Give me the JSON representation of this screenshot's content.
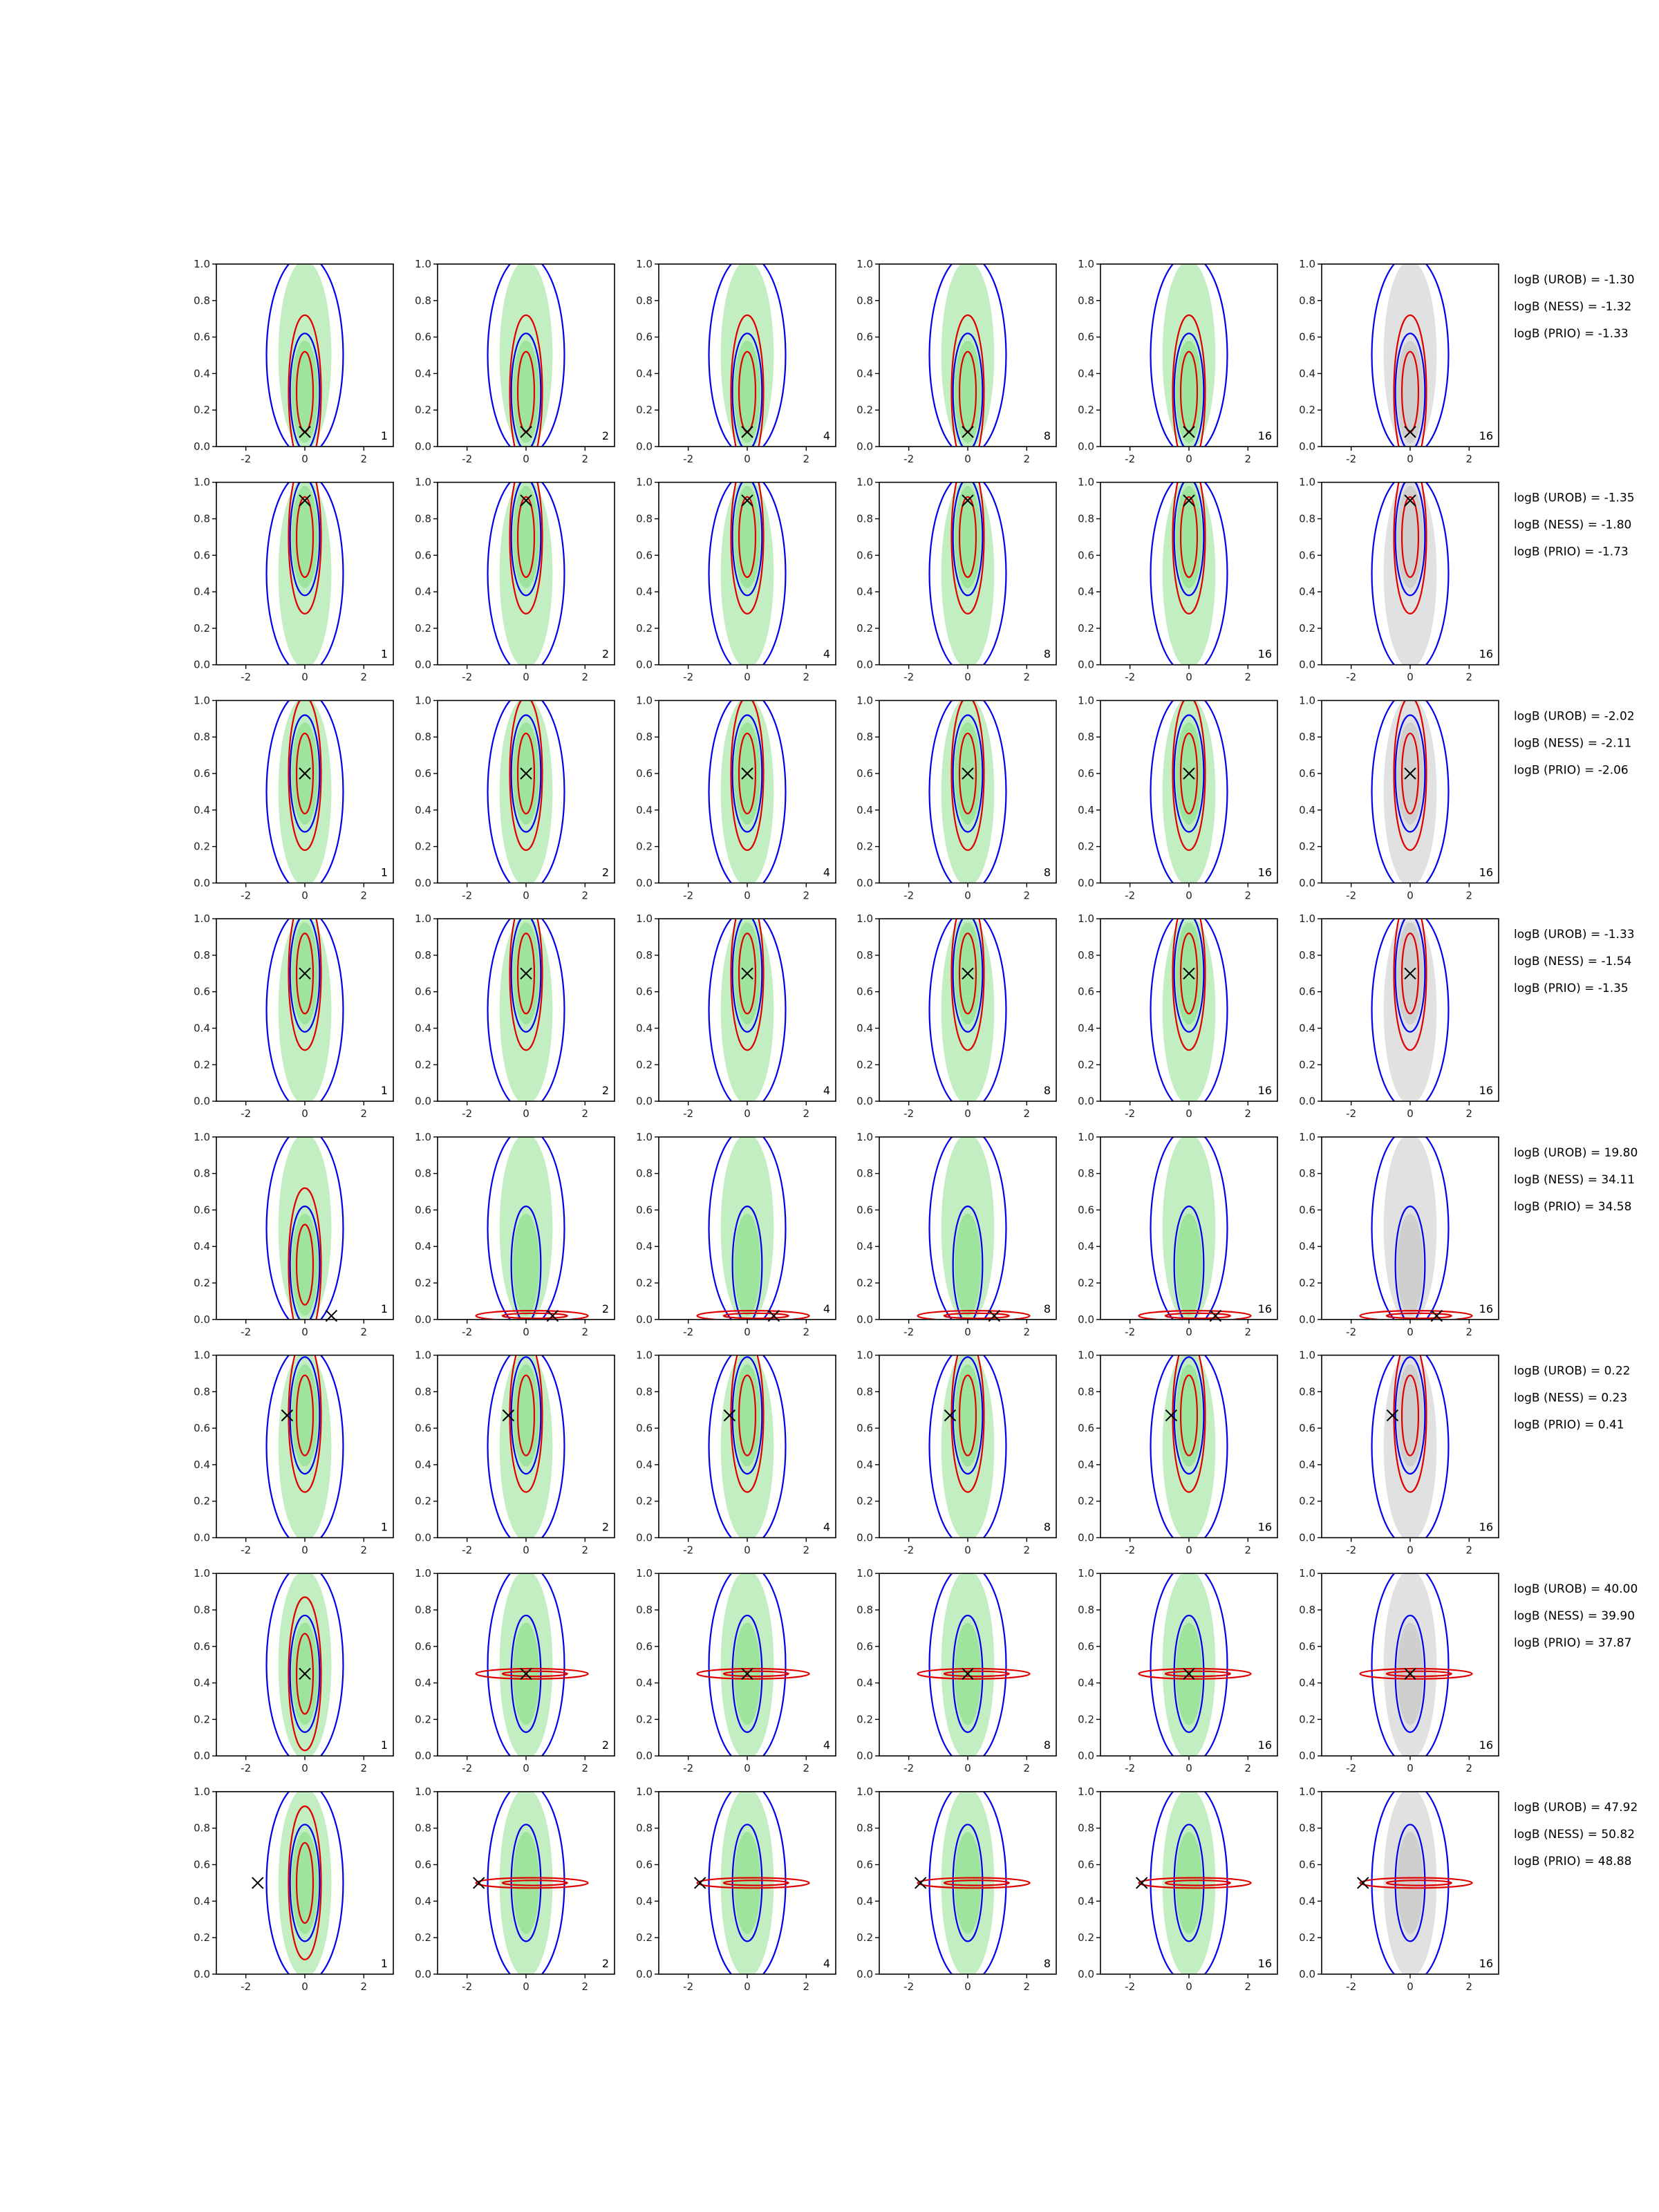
{
  "chart_data": {
    "type": "contour-grid",
    "xlim": [
      -3,
      3
    ],
    "ylim": [
      0,
      1
    ],
    "xticks": [
      "-2",
      "0",
      "2"
    ],
    "yticks": [
      "0.0",
      "0.2",
      "0.4",
      "0.6",
      "0.8",
      "1.0"
    ],
    "grid": false,
    "colors": {
      "blue": "#0000ee",
      "red": "#e00000",
      "green_fill": "#8fe08f",
      "grey_fill": "#c8c8c8",
      "marker": "#000000"
    },
    "column_labels": [
      "1",
      "2",
      "4",
      "8",
      "16",
      "16"
    ],
    "last_column_fill": "grey",
    "rows": [
      {
        "truth": [
          0.0,
          0.08
        ],
        "stats": [
          "logB (UROB) = -1.30",
          "logB (NESS) = -1.32",
          "logB (PRIO) = -1.33"
        ]
      },
      {
        "truth": [
          0.0,
          0.9
        ],
        "stats": [
          "logB (UROB) = -1.35",
          "logB (NESS) = -1.80",
          "logB (PRIO) = -1.73"
        ]
      },
      {
        "truth": [
          0.0,
          0.6
        ],
        "stats": [
          "logB (UROB) = -2.02",
          "logB (NESS) = -2.11",
          "logB (PRIO) = -2.06"
        ]
      },
      {
        "truth": [
          0.0,
          0.7
        ],
        "stats": [
          "logB (UROB) = -1.33",
          "logB (NESS) = -1.54",
          "logB (PRIO) = -1.35"
        ]
      },
      {
        "truth": [
          0.9,
          0.02
        ],
        "stats": [
          "logB (UROB) = 19.80",
          "logB (NESS) = 34.11",
          "logB (PRIO) = 34.58"
        ]
      },
      {
        "truth": [
          -0.6,
          0.67
        ],
        "stats": [
          "logB (UROB) = 0.22",
          "logB (NESS) = 0.23",
          "logB (PRIO) = 0.41"
        ]
      },
      {
        "truth": [
          0.0,
          0.45
        ],
        "stats": [
          "logB (UROB) = 40.00",
          "logB (NESS) = 39.90",
          "logB (PRIO) = 37.87"
        ]
      },
      {
        "truth": [
          -1.6,
          0.5
        ],
        "stats": [
          "logB (UROB) = 47.92",
          "logB (NESS) = 50.82",
          "logB (PRIO) = 48.88"
        ]
      }
    ]
  }
}
